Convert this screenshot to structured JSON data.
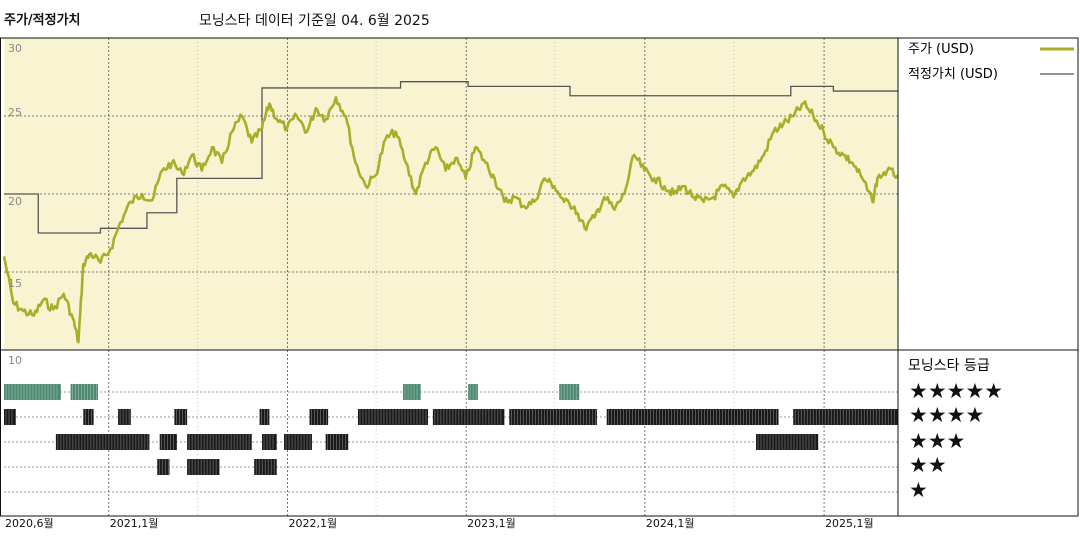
{
  "header": {
    "title": "주가/적정가치",
    "subtitle": "모닝스타 데이터 기준일 04. 6월 2025"
  },
  "legend": {
    "price_label": "주가 (USD)",
    "fair_label": "적정가치 (USD)",
    "price_color": "#a8ae2a",
    "fair_color": "#555555",
    "rating_title": "모닝스타 등급"
  },
  "colors": {
    "plot_bg": "#f8f4d2",
    "five_star": "#4e8a72",
    "bar_dark": "#1a1a1a"
  },
  "chart_data": {
    "type": "line",
    "title": "주가/적정가치",
    "subtitle": "모닝스타 데이터 기준일 04. 6월 2025",
    "x_axis": {
      "range": [
        "2020-06",
        "2025-06"
      ],
      "ticks": [
        {
          "date": "2020-06",
          "label": "2020,6월"
        },
        {
          "date": "2021-01",
          "label": "2021,1월"
        },
        {
          "date": "2022-01",
          "label": "2022,1월"
        },
        {
          "date": "2023-01",
          "label": "2023,1월"
        },
        {
          "date": "2024-01",
          "label": "2024,1월"
        },
        {
          "date": "2025-01",
          "label": "2025,1월"
        }
      ]
    },
    "y_axis": {
      "ylim": [
        10,
        30
      ],
      "ticks": [
        "10",
        "15",
        "20",
        "25",
        "30"
      ]
    },
    "series": [
      {
        "name": "주가 (USD)",
        "points": [
          [
            "2020-06-01",
            16.0
          ],
          [
            "2020-06-20",
            13.0
          ],
          [
            "2020-07-10",
            12.5
          ],
          [
            "2020-08-01",
            12.2
          ],
          [
            "2020-08-20",
            13.2
          ],
          [
            "2020-09-10",
            12.6
          ],
          [
            "2020-10-01",
            13.6
          ],
          [
            "2020-10-20",
            12.0
          ],
          [
            "2020-10-31",
            10.5
          ],
          [
            "2020-11-10",
            15.5
          ],
          [
            "2020-11-25",
            16.2
          ],
          [
            "2020-12-15",
            15.6
          ],
          [
            "2021-01-05",
            16.5
          ],
          [
            "2021-01-25",
            18.2
          ],
          [
            "2021-02-15",
            19.5
          ],
          [
            "2021-03-10",
            20.0
          ],
          [
            "2021-03-31",
            19.6
          ],
          [
            "2021-04-20",
            21.5
          ],
          [
            "2021-05-10",
            22.0
          ],
          [
            "2021-05-31",
            21.3
          ],
          [
            "2021-06-20",
            22.5
          ],
          [
            "2021-07-10",
            21.5
          ],
          [
            "2021-07-31",
            23.0
          ],
          [
            "2021-08-20",
            22.0
          ],
          [
            "2021-09-10",
            24.0
          ],
          [
            "2021-09-30",
            25.0
          ],
          [
            "2021-10-20",
            23.3
          ],
          [
            "2021-11-10",
            24.2
          ],
          [
            "2021-11-25",
            25.8
          ],
          [
            "2021-12-10",
            24.8
          ],
          [
            "2021-12-31",
            24.2
          ],
          [
            "2022-01-20",
            25.0
          ],
          [
            "2022-02-10",
            24.0
          ],
          [
            "2022-02-28",
            25.5
          ],
          [
            "2022-03-20",
            24.8
          ],
          [
            "2022-04-10",
            26.2
          ],
          [
            "2022-04-30",
            25.0
          ],
          [
            "2022-05-20",
            22.0
          ],
          [
            "2022-06-10",
            20.5
          ],
          [
            "2022-06-30",
            21.2
          ],
          [
            "2022-07-20",
            23.5
          ],
          [
            "2022-08-10",
            24.0
          ],
          [
            "2022-08-31",
            22.0
          ],
          [
            "2022-09-20",
            20.0
          ],
          [
            "2022-10-10",
            22.0
          ],
          [
            "2022-10-31",
            23.0
          ],
          [
            "2022-11-20",
            21.5
          ],
          [
            "2022-12-10",
            22.3
          ],
          [
            "2022-12-31",
            21.0
          ],
          [
            "2023-01-20",
            23.0
          ],
          [
            "2023-02-10",
            22.0
          ],
          [
            "2023-02-28",
            21.0
          ],
          [
            "2023-03-20",
            19.5
          ],
          [
            "2023-04-10",
            19.8
          ],
          [
            "2023-04-30",
            19.2
          ],
          [
            "2023-05-20",
            19.5
          ],
          [
            "2023-06-10",
            21.0
          ],
          [
            "2023-06-30",
            20.5
          ],
          [
            "2023-07-20",
            19.5
          ],
          [
            "2023-08-10",
            19.2
          ],
          [
            "2023-08-31",
            17.8
          ],
          [
            "2023-09-20",
            18.5
          ],
          [
            "2023-10-10",
            19.8
          ],
          [
            "2023-10-31",
            19.0
          ],
          [
            "2023-11-20",
            20.0
          ],
          [
            "2023-12-10",
            22.5
          ],
          [
            "2023-12-31",
            21.5
          ],
          [
            "2024-01-20",
            21.0
          ],
          [
            "2024-02-10",
            20.5
          ],
          [
            "2024-02-29",
            20.0
          ],
          [
            "2024-03-20",
            20.5
          ],
          [
            "2024-04-10",
            19.8
          ],
          [
            "2024-04-30",
            19.5
          ],
          [
            "2024-05-20",
            19.8
          ],
          [
            "2024-06-10",
            20.5
          ],
          [
            "2024-06-30",
            19.8
          ],
          [
            "2024-07-20",
            21.0
          ],
          [
            "2024-08-10",
            21.5
          ],
          [
            "2024-08-31",
            22.5
          ],
          [
            "2024-09-20",
            24.0
          ],
          [
            "2024-10-10",
            24.5
          ],
          [
            "2024-10-31",
            25.0
          ],
          [
            "2024-11-20",
            25.8
          ],
          [
            "2024-12-10",
            25.0
          ],
          [
            "2024-12-31",
            24.0
          ],
          [
            "2025-01-20",
            23.0
          ],
          [
            "2025-02-10",
            22.5
          ],
          [
            "2025-02-28",
            22.0
          ],
          [
            "2025-03-20",
            21.0
          ],
          [
            "2025-04-10",
            19.5
          ],
          [
            "2025-04-20",
            21.0
          ],
          [
            "2025-05-10",
            21.5
          ],
          [
            "2025-05-31",
            21.2
          ]
        ]
      },
      {
        "name": "적정가치 (USD)",
        "step": true,
        "points": [
          [
            "2020-06-01",
            20.0
          ],
          [
            "2020-08-10",
            17.5
          ],
          [
            "2020-12-15",
            17.8
          ],
          [
            "2021-03-20",
            18.8
          ],
          [
            "2021-05-20",
            21.0
          ],
          [
            "2021-11-10",
            26.8
          ],
          [
            "2022-08-20",
            27.2
          ],
          [
            "2023-01-05",
            26.9
          ],
          [
            "2023-08-01",
            26.3
          ],
          [
            "2024-10-25",
            26.9
          ],
          [
            "2025-01-20",
            26.6
          ],
          [
            "2025-05-31",
            26.6
          ]
        ]
      }
    ],
    "rating_panel": {
      "title": "모닝스타 등급",
      "levels": [
        "★★★★★",
        "★★★★",
        "★★★",
        "★★",
        "★"
      ],
      "intervals": [
        {
          "stars": 5,
          "start": "2020-06-01",
          "end": "2020-09-25"
        },
        {
          "stars": 5,
          "start": "2020-10-15",
          "end": "2020-12-10"
        },
        {
          "stars": 5,
          "start": "2022-08-25",
          "end": "2022-09-30"
        },
        {
          "stars": 5,
          "start": "2023-01-05",
          "end": "2023-01-25"
        },
        {
          "stars": 5,
          "start": "2023-07-10",
          "end": "2023-08-20"
        },
        {
          "stars": 4,
          "start": "2020-06-01",
          "end": "2020-06-25"
        },
        {
          "stars": 4,
          "start": "2020-11-10",
          "end": "2020-12-01"
        },
        {
          "stars": 4,
          "start": "2021-01-20",
          "end": "2021-02-15"
        },
        {
          "stars": 4,
          "start": "2021-05-15",
          "end": "2021-06-10"
        },
        {
          "stars": 4,
          "start": "2021-11-05",
          "end": "2021-11-25"
        },
        {
          "stars": 4,
          "start": "2022-02-15",
          "end": "2022-03-25"
        },
        {
          "stars": 4,
          "start": "2022-05-25",
          "end": "2022-10-15"
        },
        {
          "stars": 4,
          "start": "2022-10-25",
          "end": "2023-03-20"
        },
        {
          "stars": 4,
          "start": "2023-03-30",
          "end": "2023-09-25"
        },
        {
          "stars": 4,
          "start": "2023-10-15",
          "end": "2024-09-30"
        },
        {
          "stars": 4,
          "start": "2024-10-30",
          "end": "2025-06-01"
        },
        {
          "stars": 3,
          "start": "2020-09-15",
          "end": "2021-03-25"
        },
        {
          "stars": 3,
          "start": "2021-04-15",
          "end": "2021-05-20"
        },
        {
          "stars": 3,
          "start": "2021-06-10",
          "end": "2021-10-20"
        },
        {
          "stars": 3,
          "start": "2021-11-10",
          "end": "2021-12-10"
        },
        {
          "stars": 3,
          "start": "2021-12-25",
          "end": "2022-02-20"
        },
        {
          "stars": 3,
          "start": "2022-03-20",
          "end": "2022-05-05"
        },
        {
          "stars": 3,
          "start": "2024-08-15",
          "end": "2024-12-20"
        },
        {
          "stars": 2,
          "start": "2021-04-10",
          "end": "2021-05-05"
        },
        {
          "stars": 2,
          "start": "2021-06-10",
          "end": "2021-08-15"
        },
        {
          "stars": 2,
          "start": "2021-10-25",
          "end": "2021-12-10"
        }
      ]
    },
    "grid": true
  }
}
